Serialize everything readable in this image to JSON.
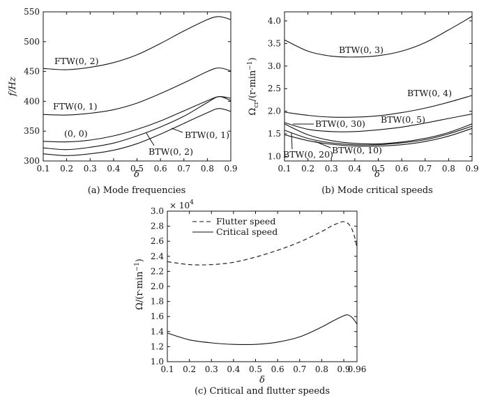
{
  "chart_data": [
    {
      "type": "line",
      "caption": "(a) Mode frequencies",
      "xlabel": "δ",
      "ylabel": "f/Hz",
      "xlim": [
        0.1,
        0.9
      ],
      "ylim": [
        300,
        550
      ],
      "xticks": [
        "0.1",
        "0.2",
        "0.3",
        "0.4",
        "0.5",
        "0.6",
        "0.7",
        "0.8",
        "0.9"
      ],
      "yticks": [
        "300",
        "350",
        "400",
        "450",
        "500",
        "550"
      ],
      "grid": false,
      "x": [
        0.1,
        0.2,
        0.3,
        0.4,
        0.5,
        0.6,
        0.7,
        0.8,
        0.85,
        0.9
      ],
      "series": [
        {
          "name": "FTW(0, 2)",
          "values": [
            455,
            453,
            457,
            465,
            478,
            497,
            518,
            537,
            542,
            537
          ]
        },
        {
          "name": "FTW(0, 1)",
          "values": [
            378,
            377,
            380,
            386,
            397,
            413,
            431,
            450,
            456,
            451
          ]
        },
        {
          "name": "(0, 0)",
          "values": [
            333,
            332,
            335,
            342,
            353,
            367,
            384,
            401,
            408,
            405
          ]
        },
        {
          "name": "BTW(0, 1)",
          "values": [
            322,
            319,
            323,
            330,
            342,
            357,
            375,
            398,
            408,
            401
          ]
        },
        {
          "name": "BTW(0, 2)",
          "values": [
            312,
            309,
            312,
            318,
            329,
            345,
            363,
            381,
            388,
            383
          ]
        }
      ],
      "labels": [
        "FTW(0, 2)",
        "FTW(0, 1)",
        "(0, 0)",
        "BTW(0, 1)",
        "BTW(0, 2)"
      ]
    },
    {
      "type": "line",
      "caption": "(b) Mode critical speeds",
      "xlabel": "δ",
      "ylabel": "Ω",
      "ylabel_sub": "cr",
      "ylabel_tail": "/(r·min",
      "ylabel_sup": "−1",
      "ylabel_close": ")",
      "xlim": [
        0.1,
        0.9
      ],
      "ylim": [
        0.9,
        4.2
      ],
      "xticks": [
        "0.1",
        "0.2",
        "0.3",
        "0.4",
        "0.5",
        "0.6",
        "0.7",
        "0.8",
        "0.9"
      ],
      "yticks": [
        "1.0",
        "1.5",
        "2.0",
        "2.5",
        "3.0",
        "3.5",
        "4.0"
      ],
      "grid": false,
      "x": [
        0.1,
        0.2,
        0.3,
        0.4,
        0.5,
        0.6,
        0.7,
        0.8,
        0.9
      ],
      "series": [
        {
          "name": "BTW(0, 3)",
          "values": [
            3.58,
            3.33,
            3.22,
            3.2,
            3.23,
            3.33,
            3.52,
            3.8,
            4.1
          ]
        },
        {
          "name": "BTW(0, 4)",
          "values": [
            1.98,
            1.91,
            1.87,
            1.87,
            1.9,
            1.97,
            2.07,
            2.2,
            2.35
          ]
        },
        {
          "name": "BTW(0, 5)",
          "values": [
            1.75,
            1.6,
            1.55,
            1.55,
            1.59,
            1.65,
            1.74,
            1.84,
            1.94
          ]
        },
        {
          "name": "BTW(0, 30)",
          "values": [
            1.72,
            1.48,
            1.35,
            1.29,
            1.28,
            1.32,
            1.4,
            1.53,
            1.72
          ]
        },
        {
          "name": "BTW(0, 20)",
          "values": [
            1.58,
            1.4,
            1.3,
            1.26,
            1.26,
            1.3,
            1.37,
            1.5,
            1.67
          ]
        },
        {
          "name": "BTW(0, 10)",
          "values": [
            1.48,
            1.35,
            1.27,
            1.23,
            1.23,
            1.26,
            1.33,
            1.45,
            1.62
          ]
        }
      ],
      "labels": [
        "BTW(0, 3)",
        "BTW(0, 4)",
        "BTW(0, 5)",
        "BTW(0, 30)",
        "BTW(0, 20)",
        "BTW(0, 10)"
      ]
    },
    {
      "type": "line",
      "caption": "(c) Critical and flutter speeds",
      "xlabel": "δ",
      "ylabel": "Ω/(r·min",
      "ylabel_sup": "−1",
      "ylabel_close": ")",
      "multiplier": "× 10",
      "multiplier_exp": "4",
      "xlim": [
        0.1,
        0.96
      ],
      "ylim": [
        1.0,
        3.0
      ],
      "xticks": [
        "0.1",
        "0.2",
        "0.3",
        "0.4",
        "0.5",
        "0.6",
        "0.7",
        "0.8",
        "0.9",
        "0.96"
      ],
      "yticks": [
        "1.0",
        "1.2",
        "1.4",
        "1.6",
        "1.8",
        "2.0",
        "2.2",
        "2.4",
        "2.6",
        "2.8",
        "3.0"
      ],
      "grid": false,
      "legend_position": "top-left",
      "series": [
        {
          "name": "Flutter speed",
          "style": "dashed",
          "x": [
            0.1,
            0.2,
            0.3,
            0.4,
            0.5,
            0.6,
            0.7,
            0.8,
            0.85,
            0.9,
            0.93,
            0.95,
            0.96
          ],
          "values": [
            2.33,
            2.29,
            2.29,
            2.32,
            2.39,
            2.48,
            2.59,
            2.73,
            2.81,
            2.86,
            2.8,
            2.65,
            2.5
          ]
        },
        {
          "name": "Critical speed",
          "style": "solid",
          "x": [
            0.1,
            0.2,
            0.3,
            0.4,
            0.5,
            0.6,
            0.7,
            0.8,
            0.85,
            0.9,
            0.92,
            0.94,
            0.96
          ],
          "values": [
            1.38,
            1.29,
            1.25,
            1.23,
            1.23,
            1.26,
            1.33,
            1.46,
            1.54,
            1.61,
            1.62,
            1.58,
            1.5
          ]
        }
      ]
    }
  ]
}
